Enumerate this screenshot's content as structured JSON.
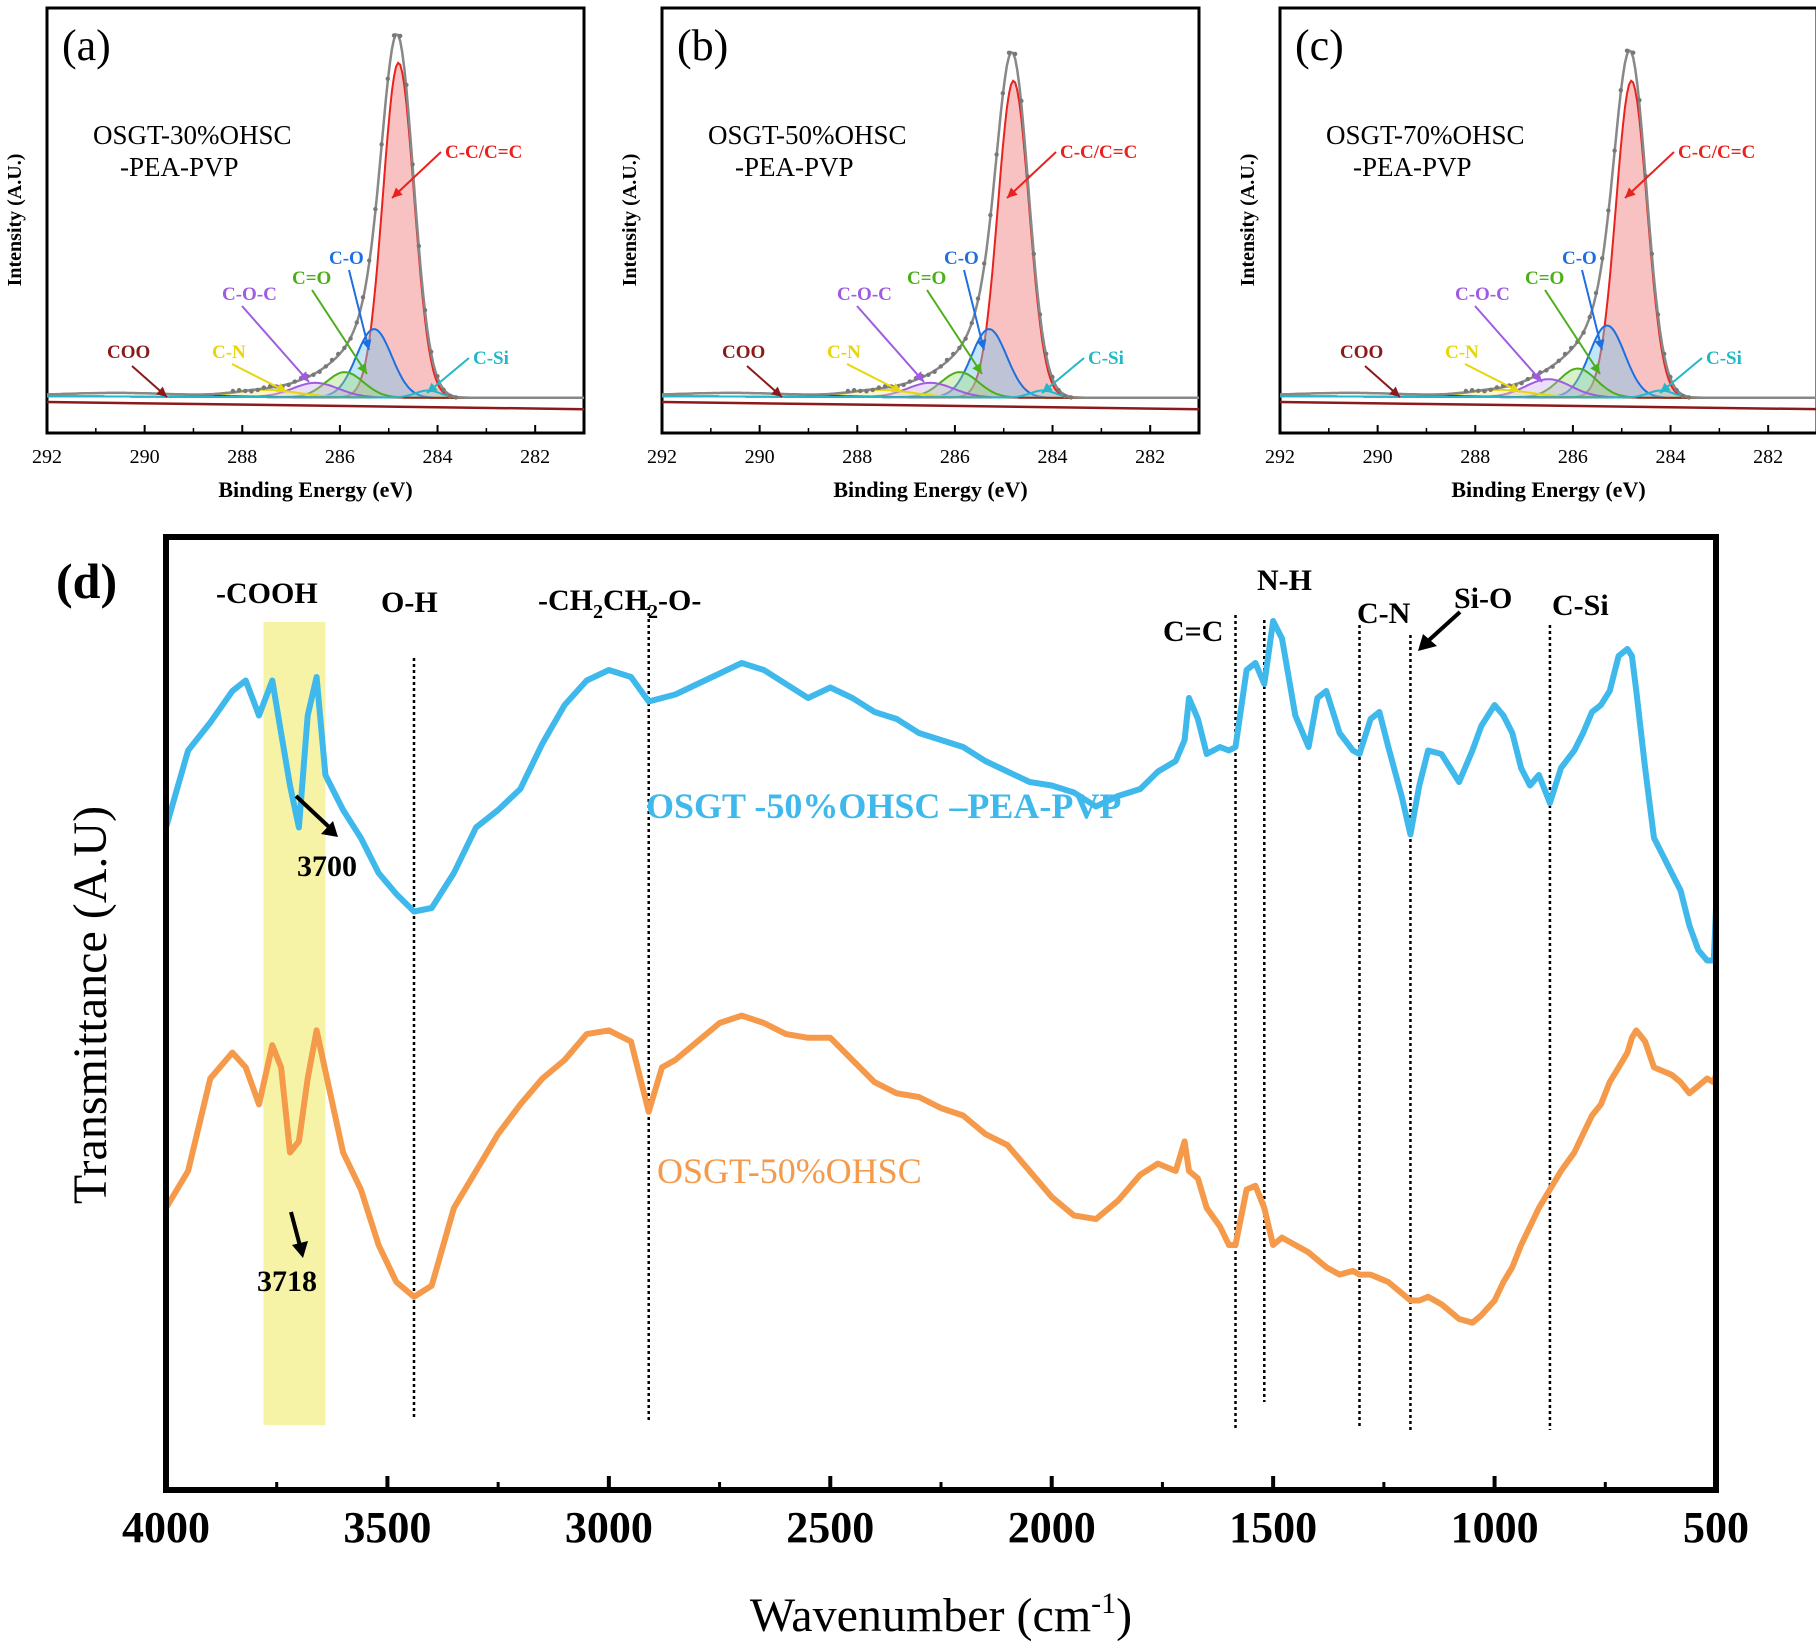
{
  "panels": [
    {
      "letter": "(a)",
      "sample_lines": [
        "OSGT-30%OHSC",
        "-PEA-PVP"
      ],
      "xlabel": "Binding Energy (eV)",
      "ylabel": "Intensity (A.U.)",
      "xticks": [
        "292",
        "290",
        "288",
        "286",
        "284",
        "282"
      ]
    },
    {
      "letter": "(b)",
      "sample_lines": [
        "OSGT-50%OHSC",
        "-PEA-PVP"
      ],
      "xlabel": "Binding Energy (eV)",
      "ylabel": "Intensity (A.U.)",
      "xticks": [
        "292",
        "290",
        "288",
        "286",
        "284",
        "282"
      ]
    },
    {
      "letter": "(c)",
      "sample_lines": [
        "OSGT-70%OHSC",
        "-PEA-PVP"
      ],
      "xlabel": "Binding Energy (eV)",
      "ylabel": "Intensity (A.U.)",
      "xticks": [
        "292",
        "290",
        "288",
        "286",
        "284",
        "282"
      ]
    }
  ],
  "xps_labels": [
    "COO",
    "C-N",
    "C-O-C",
    "C=O",
    "C-O",
    "C-C/C=C",
    "C-Si"
  ],
  "ftir": {
    "letter": "(d)",
    "xlabel": "Wavenumber (cm",
    "xlabel_sup": "-1",
    "xlabel_close": ")",
    "ylabel": "Transmittance (A.U)",
    "xticks": [
      "4000",
      "3500",
      "3000",
      "2500",
      "2000",
      "1500",
      "1000",
      "500"
    ],
    "band_labels": [
      "-COOH",
      "O-H",
      "C=C",
      "N-H",
      "C-N",
      "Si-O",
      "C-Si"
    ],
    "ch2_label": {
      "a": "-CH",
      "b": "2",
      "c": "CH",
      "d": "2",
      "e": "-O-"
    },
    "peak_labels": [
      "3700",
      "3718"
    ],
    "series_labels": [
      "OSGT -50%OHSC –PEA-PVP",
      "OSGT-50%OHSC"
    ]
  },
  "colors": {
    "cc": "#e8231f",
    "co": "#1f6fe0",
    "ceo": "#4caf1a",
    "coc": "#a05ce0",
    "cn": "#e6d60a",
    "coo": "#8b1a1a",
    "csi": "#22b8c8",
    "blue_series": "#3fb8ec",
    "orange_series": "#f59a4a",
    "highlight": "#f6f3a6"
  },
  "chart_data": [
    {
      "type": "line",
      "panel": "a",
      "xlabel": "Binding Energy (eV)",
      "ylabel": "Intensity (A.U.)",
      "xlim": [
        292,
        281
      ],
      "x_reversed": true,
      "components": [
        {
          "name": "C-C/C=C",
          "center": 284.8,
          "height": 0.93,
          "fwhm": 0.75
        },
        {
          "name": "C-O",
          "center": 285.3,
          "height": 0.19,
          "fwhm": 0.85
        },
        {
          "name": "C=O",
          "center": 285.9,
          "height": 0.07,
          "fwhm": 0.9
        },
        {
          "name": "C-O-C",
          "center": 286.5,
          "height": 0.04,
          "fwhm": 1.1
        },
        {
          "name": "C-N",
          "center": 287.5,
          "height": 0.02,
          "fwhm": 1.5
        },
        {
          "name": "COO",
          "center": 290.5,
          "height": 0.01,
          "fwhm": 3.0
        },
        {
          "name": "C-Si",
          "center": 284.2,
          "height": 0.02,
          "fwhm": 0.6
        }
      ]
    },
    {
      "type": "line",
      "panel": "b",
      "xlabel": "Binding Energy (eV)",
      "ylabel": "Intensity (A.U.)",
      "xlim": [
        292,
        281
      ],
      "x_reversed": true,
      "components": [
        {
          "name": "C-C/C=C",
          "center": 284.8,
          "height": 0.88,
          "fwhm": 0.75
        },
        {
          "name": "C-O",
          "center": 285.3,
          "height": 0.19,
          "fwhm": 0.85
        },
        {
          "name": "C=O",
          "center": 285.9,
          "height": 0.07,
          "fwhm": 0.9
        },
        {
          "name": "C-O-C",
          "center": 286.5,
          "height": 0.04,
          "fwhm": 1.1
        },
        {
          "name": "C-N",
          "center": 287.5,
          "height": 0.02,
          "fwhm": 1.5
        },
        {
          "name": "COO",
          "center": 290.5,
          "height": 0.01,
          "fwhm": 3.0
        },
        {
          "name": "C-Si",
          "center": 284.2,
          "height": 0.02,
          "fwhm": 0.6
        }
      ]
    },
    {
      "type": "line",
      "panel": "c",
      "xlabel": "Binding Energy (eV)",
      "ylabel": "Intensity (A.U.)",
      "xlim": [
        292,
        281
      ],
      "x_reversed": true,
      "components": [
        {
          "name": "C-C/C=C",
          "center": 284.8,
          "height": 0.88,
          "fwhm": 0.75
        },
        {
          "name": "C-O",
          "center": 285.3,
          "height": 0.2,
          "fwhm": 0.85
        },
        {
          "name": "C=O",
          "center": 285.9,
          "height": 0.08,
          "fwhm": 0.9
        },
        {
          "name": "C-O-C",
          "center": 286.5,
          "height": 0.05,
          "fwhm": 1.1
        },
        {
          "name": "C-N",
          "center": 287.5,
          "height": 0.02,
          "fwhm": 1.5
        },
        {
          "name": "COO",
          "center": 290.5,
          "height": 0.01,
          "fwhm": 3.0
        },
        {
          "name": "C-Si",
          "center": 284.2,
          "height": 0.02,
          "fwhm": 0.6
        }
      ]
    },
    {
      "type": "line",
      "panel": "d",
      "xlabel": "Wavenumber (cm-1)",
      "ylabel": "Transmittance (A.U)",
      "xlim": [
        4000,
        500
      ],
      "x_reversed": true,
      "highlight_band": [
        3780,
        3640
      ],
      "marker_lines": [
        3440,
        2910,
        1585,
        1520,
        1305,
        1190,
        875
      ],
      "series": [
        {
          "name": "OSGT -50%OHSC –PEA-PVP",
          "x": [
            4000,
            3950,
            3900,
            3850,
            3820,
            3790,
            3760,
            3740,
            3720,
            3700,
            3680,
            3660,
            3640,
            3600,
            3560,
            3520,
            3480,
            3440,
            3400,
            3350,
            3300,
            3250,
            3200,
            3150,
            3100,
            3050,
            3000,
            2950,
            2910,
            2880,
            2850,
            2800,
            2750,
            2700,
            2650,
            2600,
            2550,
            2500,
            2450,
            2400,
            2350,
            2300,
            2250,
            2200,
            2150,
            2100,
            2050,
            2000,
            1950,
            1900,
            1850,
            1800,
            1760,
            1720,
            1700,
            1690,
            1670,
            1650,
            1620,
            1600,
            1585,
            1560,
            1540,
            1520,
            1500,
            1480,
            1450,
            1420,
            1400,
            1380,
            1350,
            1320,
            1305,
            1280,
            1260,
            1240,
            1210,
            1190,
            1170,
            1150,
            1120,
            1100,
            1080,
            1050,
            1030,
            1000,
            980,
            960,
            940,
            920,
            900,
            875,
            850,
            820,
            800,
            780,
            760,
            740,
            720,
            700,
            690,
            680,
            660,
            640,
            620,
            600,
            580,
            560,
            540,
            520,
            505,
            500
          ],
          "y": [
            0.33,
            0.55,
            0.63,
            0.72,
            0.75,
            0.65,
            0.75,
            0.6,
            0.45,
            0.33,
            0.65,
            0.76,
            0.48,
            0.38,
            0.3,
            0.2,
            0.14,
            0.09,
            0.1,
            0.2,
            0.33,
            0.38,
            0.44,
            0.57,
            0.68,
            0.75,
            0.78,
            0.76,
            0.69,
            0.7,
            0.71,
            0.74,
            0.77,
            0.8,
            0.78,
            0.74,
            0.7,
            0.73,
            0.7,
            0.66,
            0.64,
            0.6,
            0.58,
            0.56,
            0.52,
            0.49,
            0.46,
            0.45,
            0.43,
            0.39,
            0.42,
            0.44,
            0.49,
            0.52,
            0.58,
            0.7,
            0.64,
            0.54,
            0.56,
            0.55,
            0.56,
            0.78,
            0.8,
            0.74,
            0.92,
            0.87,
            0.65,
            0.56,
            0.7,
            0.72,
            0.6,
            0.55,
            0.54,
            0.64,
            0.66,
            0.56,
            0.42,
            0.31,
            0.45,
            0.55,
            0.54,
            0.5,
            0.46,
            0.55,
            0.62,
            0.68,
            0.65,
            0.6,
            0.5,
            0.45,
            0.48,
            0.4,
            0.5,
            0.55,
            0.6,
            0.66,
            0.68,
            0.72,
            0.82,
            0.84,
            0.82,
            0.72,
            0.5,
            0.3,
            0.25,
            0.2,
            0.15,
            0.05,
            -0.02,
            -0.05,
            -0.05,
            0.1
          ]
        },
        {
          "name": "OSGT-50%OHSC",
          "x": [
            4000,
            3950,
            3900,
            3850,
            3820,
            3790,
            3760,
            3740,
            3720,
            3700,
            3680,
            3660,
            3640,
            3600,
            3560,
            3520,
            3480,
            3440,
            3400,
            3350,
            3300,
            3250,
            3200,
            3150,
            3100,
            3050,
            3000,
            2950,
            2910,
            2880,
            2850,
            2800,
            2750,
            2700,
            2650,
            2600,
            2550,
            2500,
            2450,
            2400,
            2350,
            2300,
            2250,
            2200,
            2150,
            2100,
            2050,
            2000,
            1950,
            1900,
            1850,
            1800,
            1760,
            1720,
            1700,
            1690,
            1670,
            1650,
            1620,
            1600,
            1585,
            1560,
            1540,
            1520,
            1500,
            1480,
            1450,
            1420,
            1400,
            1380,
            1350,
            1320,
            1305,
            1280,
            1260,
            1240,
            1210,
            1190,
            1170,
            1150,
            1120,
            1100,
            1080,
            1050,
            1030,
            1000,
            980,
            960,
            940,
            920,
            900,
            875,
            850,
            820,
            800,
            780,
            760,
            740,
            720,
            700,
            690,
            680,
            660,
            640,
            620,
            600,
            580,
            560,
            540,
            520,
            505,
            500
          ],
          "y": [
            0.1,
            0.2,
            0.45,
            0.52,
            0.48,
            0.38,
            0.54,
            0.48,
            0.25,
            0.28,
            0.45,
            0.58,
            0.47,
            0.25,
            0.15,
            0.0,
            -0.1,
            -0.14,
            -0.11,
            0.1,
            0.2,
            0.3,
            0.38,
            0.45,
            0.5,
            0.57,
            0.58,
            0.55,
            0.36,
            0.48,
            0.5,
            0.55,
            0.6,
            0.62,
            0.6,
            0.57,
            0.56,
            0.56,
            0.5,
            0.44,
            0.41,
            0.4,
            0.37,
            0.35,
            0.3,
            0.27,
            0.2,
            0.13,
            0.08,
            0.07,
            0.12,
            0.19,
            0.22,
            0.2,
            0.28,
            0.2,
            0.18,
            0.1,
            0.05,
            0.0,
            0.0,
            0.15,
            0.16,
            0.1,
            0.0,
            0.02,
            0.0,
            -0.02,
            -0.04,
            -0.06,
            -0.08,
            -0.07,
            -0.08,
            -0.08,
            -0.09,
            -0.1,
            -0.13,
            -0.15,
            -0.15,
            -0.14,
            -0.16,
            -0.18,
            -0.2,
            -0.21,
            -0.19,
            -0.15,
            -0.1,
            -0.06,
            0.0,
            0.05,
            0.1,
            0.15,
            0.2,
            0.25,
            0.3,
            0.35,
            0.38,
            0.44,
            0.48,
            0.52,
            0.56,
            0.58,
            0.55,
            0.48,
            0.47,
            0.46,
            0.44,
            0.41,
            0.43,
            0.45,
            0.44,
            0.46
          ]
        }
      ]
    }
  ]
}
